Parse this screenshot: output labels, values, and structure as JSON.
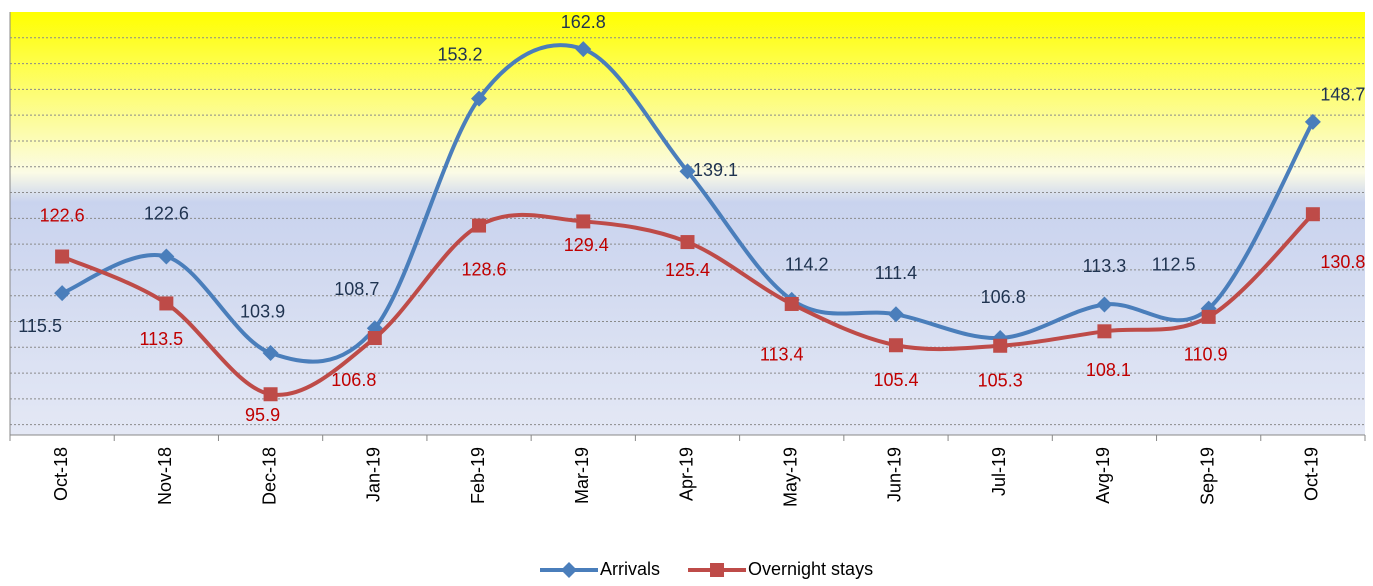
{
  "chart_data": {
    "type": "line",
    "categories": [
      "Oct-18",
      "Nov-18",
      "Dec-18",
      "Jan-19",
      "Feb-19",
      "Mar-19",
      "Apr-19",
      "May-19",
      "Jun-19",
      "Jul-19",
      "Avg-19",
      "Sep-19",
      "Oct-19"
    ],
    "series": [
      {
        "name": "Arrivals",
        "color": "#4a7ebb",
        "marker": "diamond",
        "values": [
          115.5,
          122.6,
          103.9,
          108.7,
          153.2,
          162.8,
          139.1,
          114.2,
          111.4,
          106.8,
          113.3,
          112.5,
          148.7
        ]
      },
      {
        "name": "Overnight stays",
        "color": "#be4b48",
        "marker": "square",
        "values": [
          122.6,
          113.5,
          95.9,
          106.8,
          128.6,
          129.4,
          125.4,
          113.4,
          105.4,
          105.3,
          108.1,
          110.9,
          130.8
        ]
      }
    ],
    "ylim": [
      88,
      170
    ],
    "yticks": [
      90,
      95,
      100,
      105,
      110,
      115,
      120,
      125,
      130,
      135,
      140,
      145,
      150,
      155,
      160,
      165
    ],
    "grid": true,
    "smooth": true,
    "legend": "bottom"
  }
}
